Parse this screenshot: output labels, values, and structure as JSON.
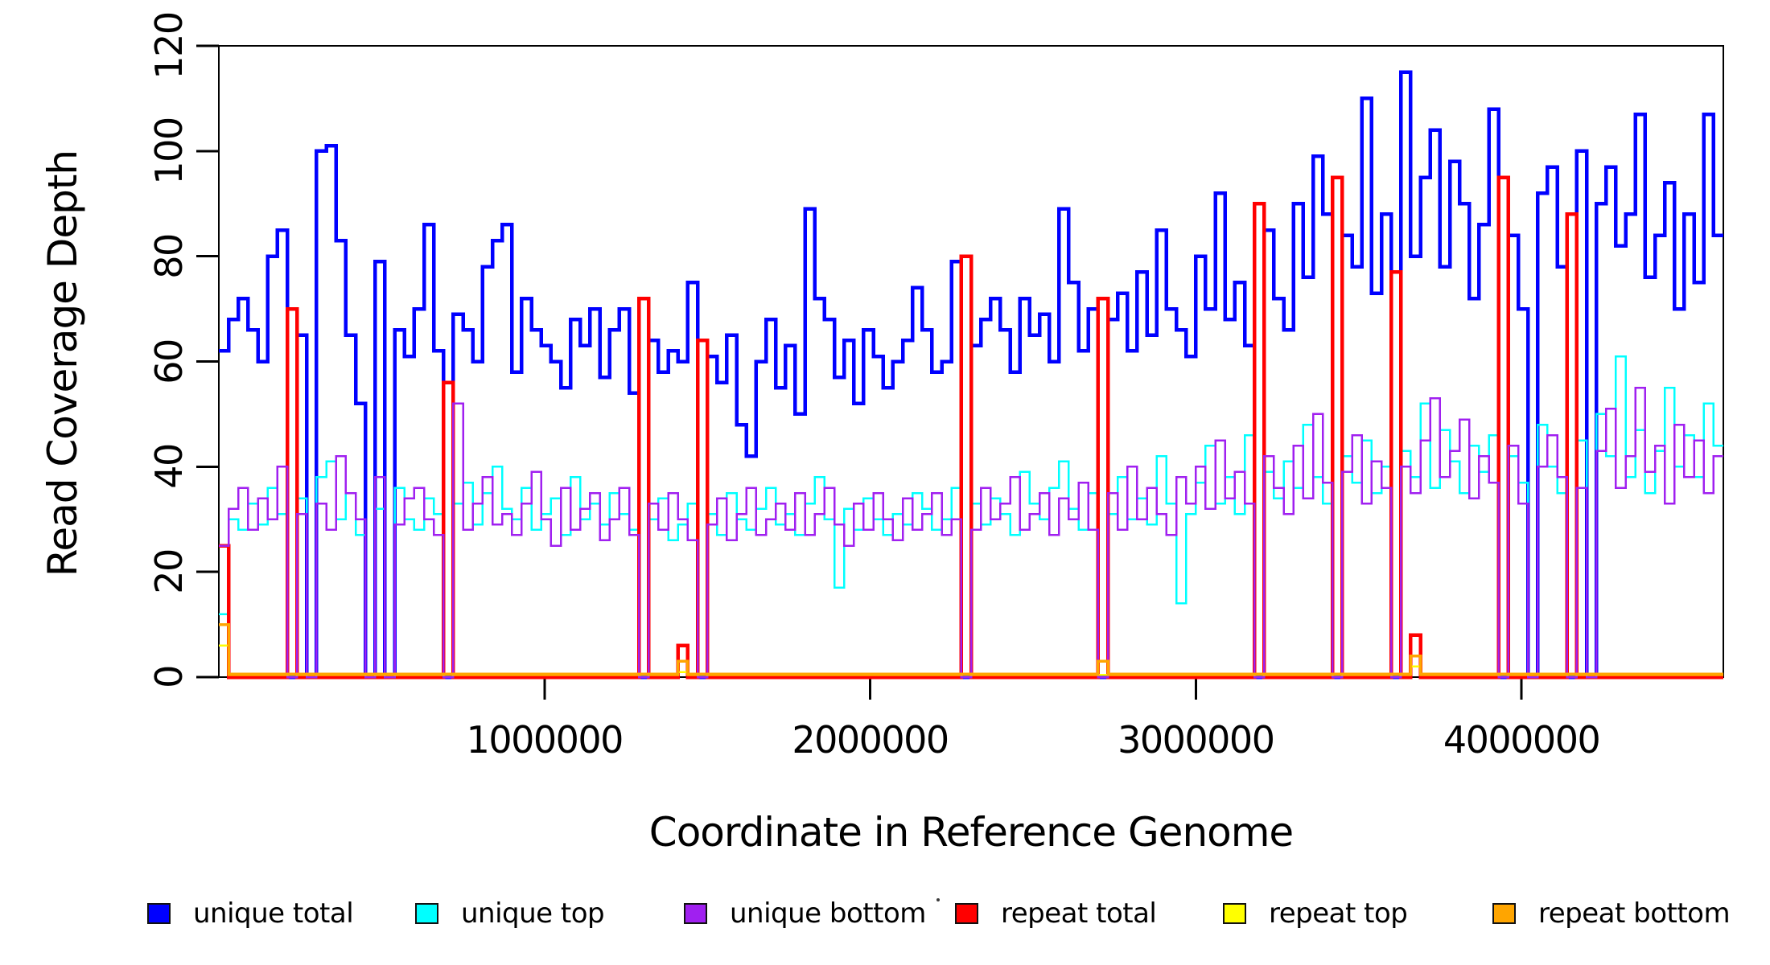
{
  "y_axis": {
    "title": "Read Coverage Depth",
    "range": [
      0,
      120
    ],
    "ticks": [
      {
        "value": 0,
        "label": "0"
      },
      {
        "value": 20,
        "label": "20"
      },
      {
        "value": 40,
        "label": "40"
      },
      {
        "value": 60,
        "label": "60"
      },
      {
        "value": 80,
        "label": "80"
      },
      {
        "value": 100,
        "label": "100"
      },
      {
        "value": 120,
        "label": "120"
      }
    ]
  },
  "x_axis": {
    "title": "Coordinate in Reference Genome",
    "range": [
      0,
      4620000
    ],
    "ticks": [
      {
        "value": 1000000,
        "label": "1000000"
      },
      {
        "value": 2000000,
        "label": "2000000"
      },
      {
        "value": 3000000,
        "label": "3000000"
      },
      {
        "value": 4000000,
        "label": "4000000"
      }
    ]
  },
  "legend": {
    "items": [
      {
        "label": "unique total",
        "color": "#0000FF"
      },
      {
        "label": "unique top",
        "color": "#00FFFF"
      },
      {
        "label": "unique bottom",
        "color": "#A020F0"
      },
      {
        "label": "repeat total",
        "color": "#FF0000"
      },
      {
        "label": "repeat top",
        "color": "#FFFF00"
      },
      {
        "label": "repeat bottom",
        "color": "#FFA500"
      }
    ]
  },
  "chart_data": {
    "type": "line",
    "subtype": "step",
    "title": "",
    "xlabel": "Coordinate in Reference Genome",
    "ylabel": "Read Coverage Depth",
    "xlim": [
      0,
      4620000
    ],
    "ylim": [
      0,
      120
    ],
    "grid": false,
    "legend_position": "bottom",
    "x_start": 0,
    "x_step": 30000,
    "n_points": 154,
    "draw_order": [
      "unique total",
      "unique top",
      "repeat total",
      "unique bottom",
      "repeat top",
      "repeat bottom"
    ],
    "series": [
      {
        "name": "unique total",
        "color": "#0000FF",
        "line_width": 4.5,
        "values": [
          62,
          68,
          72,
          66,
          60,
          80,
          85,
          0,
          65,
          0,
          100,
          101,
          83,
          65,
          52,
          0,
          79,
          0,
          66,
          61,
          70,
          86,
          62,
          0,
          69,
          66,
          60,
          78,
          83,
          86,
          58,
          72,
          66,
          63,
          60,
          55,
          68,
          63,
          70,
          57,
          66,
          70,
          54,
          0,
          64,
          58,
          62,
          60,
          75,
          0,
          61,
          56,
          65,
          48,
          42,
          60,
          68,
          55,
          63,
          50,
          89,
          72,
          68,
          57,
          64,
          52,
          66,
          61,
          55,
          60,
          64,
          74,
          66,
          58,
          60,
          79,
          0,
          63,
          68,
          72,
          66,
          58,
          72,
          65,
          69,
          60,
          89,
          75,
          62,
          70,
          0,
          68,
          73,
          62,
          77,
          65,
          85,
          70,
          66,
          61,
          80,
          70,
          92,
          68,
          75,
          63,
          0,
          85,
          72,
          66,
          90,
          76,
          99,
          88,
          0,
          84,
          78,
          110,
          73,
          88,
          0,
          115,
          80,
          95,
          104,
          78,
          98,
          90,
          72,
          86,
          108,
          0,
          84,
          70,
          0,
          92,
          97,
          78,
          0,
          100,
          0,
          90,
          97,
          82,
          88,
          107,
          76,
          84,
          94,
          70,
          88,
          75,
          107,
          84
        ]
      },
      {
        "name": "unique top",
        "color": "#00FFFF",
        "line_width": 2.5,
        "values": [
          12,
          30,
          28,
          33,
          29,
          36,
          31,
          0,
          34,
          0,
          38,
          41,
          30,
          35,
          27,
          0,
          32,
          0,
          36,
          30,
          28,
          34,
          31,
          0,
          33,
          37,
          29,
          35,
          40,
          32,
          30,
          36,
          28,
          31,
          34,
          27,
          38,
          30,
          33,
          29,
          35,
          31,
          28,
          0,
          30,
          34,
          26,
          29,
          33,
          0,
          31,
          27,
          35,
          30,
          28,
          32,
          36,
          29,
          31,
          27,
          33,
          38,
          30,
          17,
          32,
          28,
          34,
          30,
          27,
          31,
          29,
          35,
          32,
          28,
          30,
          36,
          0,
          33,
          29,
          34,
          31,
          27,
          39,
          33,
          30,
          36,
          41,
          32,
          28,
          35,
          0,
          31,
          38,
          30,
          34,
          29,
          42,
          33,
          14,
          31,
          37,
          44,
          33,
          38,
          31,
          46,
          0,
          39,
          34,
          41,
          36,
          48,
          38,
          33,
          0,
          42,
          37,
          45,
          35,
          40,
          0,
          43,
          38,
          52,
          36,
          47,
          41,
          35,
          44,
          39,
          46,
          0,
          42,
          37,
          0,
          48,
          40,
          35,
          0,
          45,
          0,
          50,
          42,
          61,
          38,
          47,
          35,
          43,
          55,
          40,
          46,
          38,
          52,
          44
        ]
      },
      {
        "name": "unique bottom",
        "color": "#A020F0",
        "line_width": 2.5,
        "values": [
          25,
          32,
          36,
          28,
          34,
          30,
          40,
          0,
          31,
          0,
          33,
          28,
          42,
          35,
          30,
          0,
          38,
          0,
          29,
          34,
          36,
          30,
          27,
          0,
          52,
          28,
          33,
          38,
          29,
          31,
          27,
          33,
          39,
          30,
          25,
          36,
          28,
          32,
          35,
          26,
          30,
          36,
          27,
          0,
          33,
          28,
          35,
          30,
          26,
          0,
          29,
          34,
          26,
          31,
          36,
          27,
          30,
          33,
          28,
          35,
          27,
          31,
          36,
          29,
          25,
          33,
          28,
          35,
          30,
          26,
          34,
          28,
          31,
          35,
          27,
          30,
          0,
          28,
          36,
          30,
          33,
          38,
          28,
          31,
          35,
          27,
          34,
          30,
          37,
          28,
          0,
          35,
          28,
          40,
          30,
          36,
          31,
          27,
          38,
          33,
          40,
          32,
          45,
          34,
          39,
          33,
          0,
          42,
          36,
          31,
          44,
          34,
          50,
          37,
          0,
          39,
          46,
          33,
          41,
          36,
          0,
          40,
          35,
          45,
          53,
          38,
          43,
          49,
          34,
          42,
          37,
          0,
          44,
          33,
          0,
          40,
          46,
          38,
          0,
          36,
          0,
          43,
          51,
          36,
          42,
          55,
          39,
          44,
          33,
          48,
          38,
          45,
          35,
          42
        ]
      },
      {
        "name": "repeat total",
        "color": "#FF0000",
        "line_width": 4.5,
        "baseline": 0,
        "spikes": [
          [
            0,
            25
          ],
          [
            7,
            70
          ],
          [
            23,
            56
          ],
          [
            43,
            72
          ],
          [
            47,
            6
          ],
          [
            49,
            64
          ],
          [
            76,
            80
          ],
          [
            90,
            72
          ],
          [
            106,
            90
          ],
          [
            114,
            95
          ],
          [
            120,
            77
          ],
          [
            122,
            8
          ],
          [
            131,
            95
          ],
          [
            138,
            88
          ]
        ]
      },
      {
        "name": "repeat top",
        "color": "#FFFF00",
        "line_width": 2.5,
        "baseline": 0.4,
        "spikes": [
          [
            0,
            6
          ],
          [
            47,
            1
          ],
          [
            122,
            2
          ]
        ]
      },
      {
        "name": "repeat bottom",
        "color": "#FFA500",
        "line_width": 3.5,
        "baseline": 0.6,
        "spikes": [
          [
            0,
            10
          ],
          [
            47,
            3
          ],
          [
            90,
            3
          ],
          [
            122,
            4
          ]
        ]
      }
    ],
    "annotations": {
      "coverage_gap_indices": [
        7,
        9,
        15,
        17,
        23,
        43,
        49,
        76,
        90,
        106,
        114,
        120,
        131,
        134,
        138,
        140
      ]
    }
  }
}
